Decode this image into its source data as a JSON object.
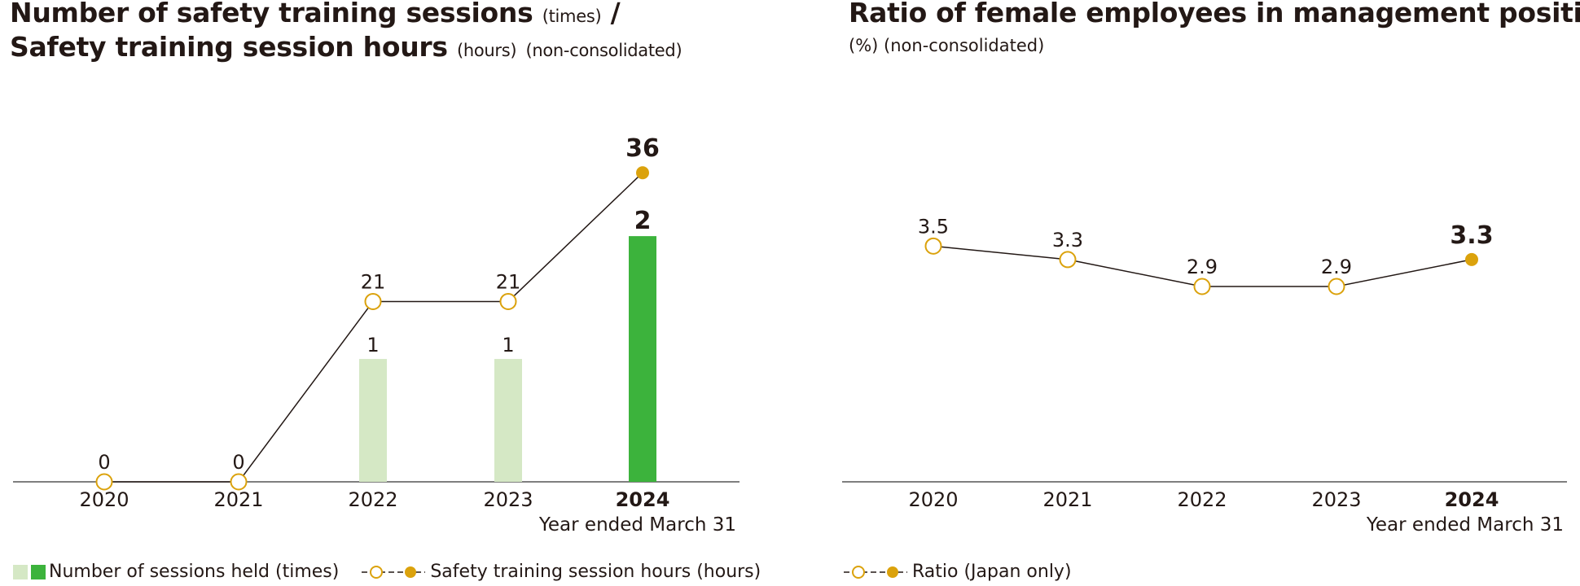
{
  "colors": {
    "bar_past": "#d5e8c5",
    "bar_current": "#3cb33c",
    "marker": "#dba20c",
    "line": "#231815",
    "axis": "#555555"
  },
  "chart_data": [
    {
      "type": "bar",
      "title_main": "Number of safety training sessions",
      "title_main_unit": "(times)",
      "title_sep": "/",
      "title_second": "Safety training session hours",
      "title_second_unit": "(hours)",
      "title_scope": "(non-consolidated)",
      "categories": [
        "2020",
        "2021",
        "2022",
        "2023",
        "2024"
      ],
      "axis_note": "Year ended March 31",
      "series": [
        {
          "name": "Number of sessions held (times)",
          "type": "bar",
          "values": [
            0,
            0,
            1,
            1,
            2
          ],
          "labels": [
            "",
            "",
            "1",
            "1",
            "2"
          ],
          "ylim": [
            0,
            3.18
          ]
        },
        {
          "name": "Safety training session hours (hours)",
          "type": "line",
          "values": [
            0,
            0,
            21,
            21,
            36
          ],
          "labels": [
            "0",
            "0",
            "21",
            "21",
            "36"
          ],
          "ylim": [
            0,
            45.5
          ]
        }
      ],
      "highlight_index": 4
    },
    {
      "type": "line",
      "title_main": "Ratio of female employees in management positions",
      "title_unit": "(%)",
      "title_scope": "(non-consolidated)",
      "categories": [
        "2020",
        "2021",
        "2022",
        "2023",
        "2024"
      ],
      "axis_note": "Year ended March 31",
      "series": [
        {
          "name": "Ratio (Japan only)",
          "values": [
            3.5,
            3.3,
            2.9,
            2.9,
            3.3
          ],
          "labels": [
            "3.5",
            "3.3",
            "2.9",
            "2.9",
            "3.3"
          ],
          "ylim": [
            0,
            5.8
          ]
        }
      ],
      "highlight_index": 4
    }
  ]
}
